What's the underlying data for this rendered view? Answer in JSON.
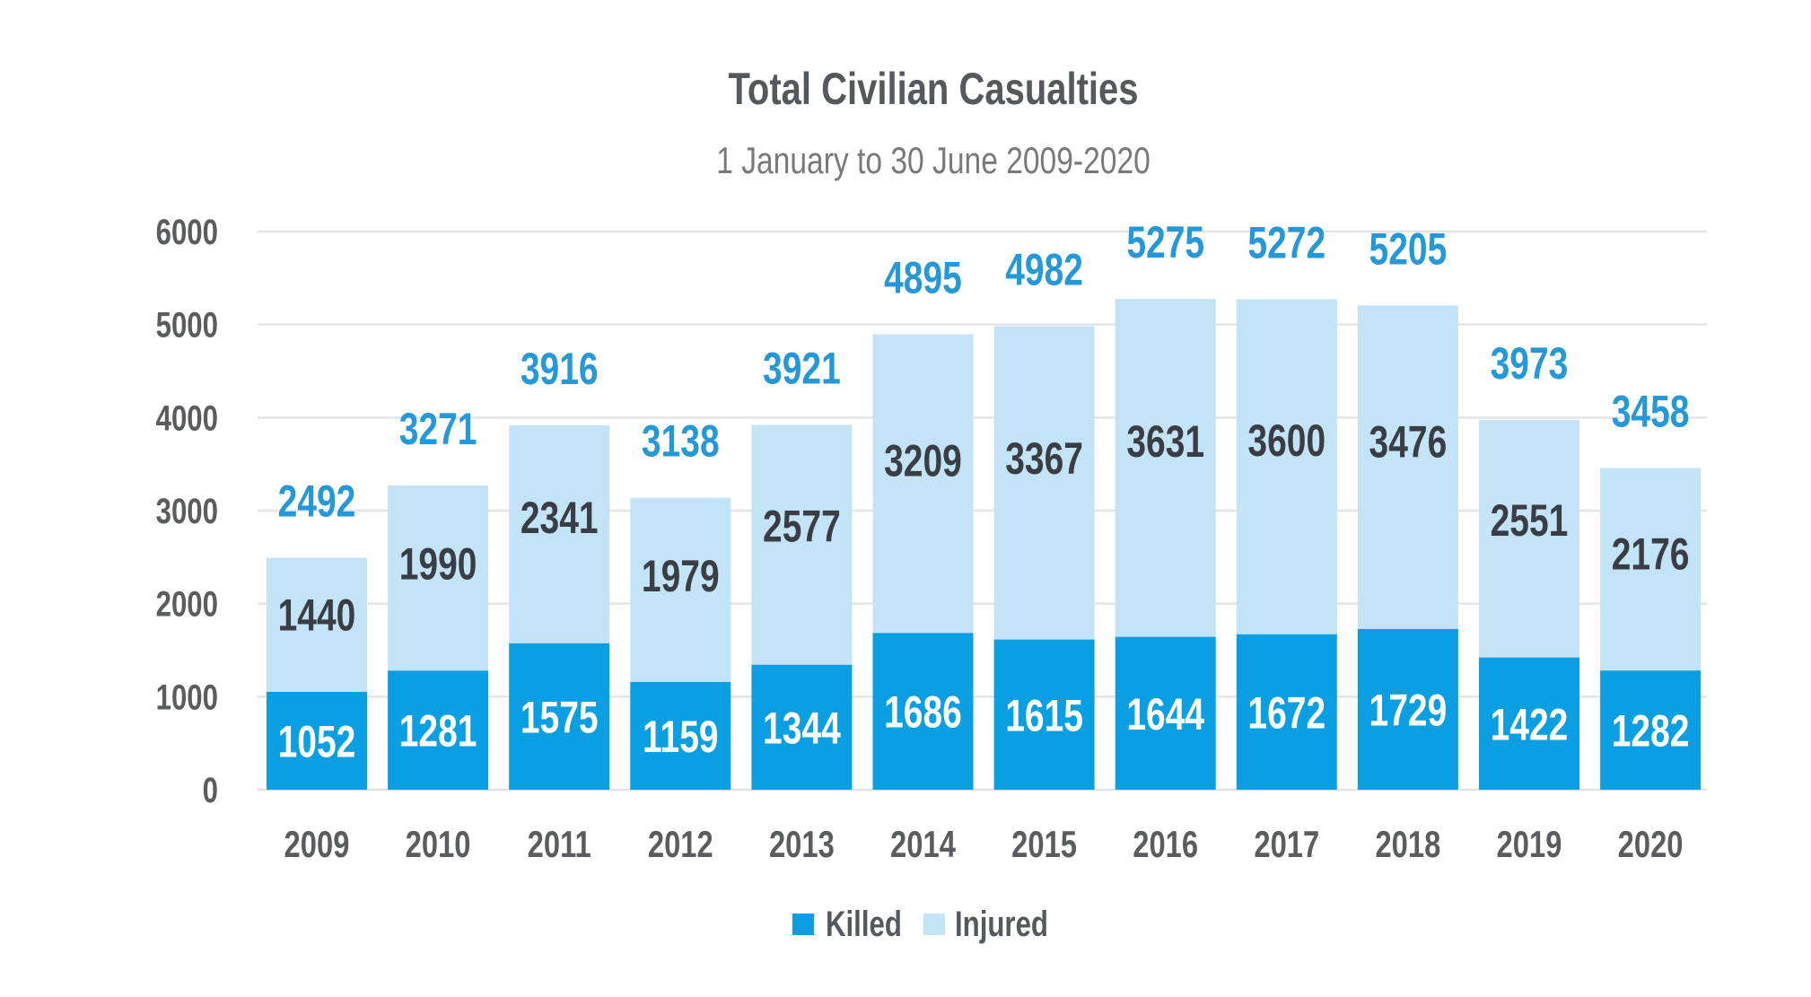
{
  "chart_data": {
    "type": "bar",
    "stacked": true,
    "title": "Total Civilian Casualties",
    "subtitle": "1 January to 30 June 2009-2020",
    "xlabel": "",
    "ylabel": "",
    "ylim": [
      0,
      6000
    ],
    "yticks": [
      0,
      1000,
      2000,
      3000,
      4000,
      5000,
      6000
    ],
    "ytick_labels": [
      "0",
      "1000",
      "2000",
      "3000",
      "4000",
      "5000",
      "6000"
    ],
    "grid": true,
    "legend_position": "bottom-center",
    "categories": [
      "2009",
      "2010",
      "2011",
      "2012",
      "2013",
      "2014",
      "2015",
      "2016",
      "2017",
      "2018",
      "2019",
      "2020"
    ],
    "series": [
      {
        "name": "Killed",
        "color": "#0a9fe3",
        "label_color": "#ffffff",
        "values": [
          1052,
          1281,
          1575,
          1159,
          1344,
          1686,
          1615,
          1644,
          1672,
          1729,
          1422,
          1282
        ]
      },
      {
        "name": "Injured",
        "color": "#c3e3f6",
        "label_color": "#3a3e44",
        "values": [
          1440,
          1990,
          2341,
          1979,
          2577,
          3209,
          3367,
          3631,
          3600,
          3476,
          2551,
          2176
        ]
      }
    ],
    "totals": [
      2492,
      3271,
      3916,
      3138,
      3921,
      4895,
      4982,
      5275,
      5272,
      5205,
      3973,
      3458
    ],
    "totals_color": "#2598d7"
  }
}
